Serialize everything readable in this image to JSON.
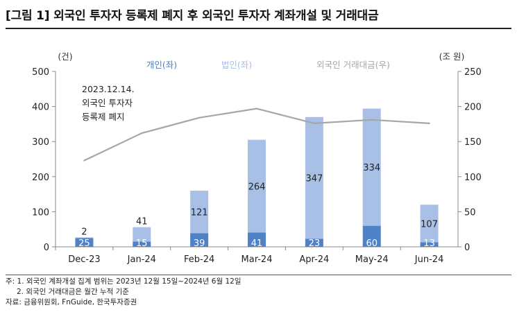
{
  "title": "[그림 1] 외국인 투자자 등록제 폐지 후 외국인 투자자 계좌개설 및 거래대금",
  "notes": [
    "주: 1. 외국인 계좌개설 집계 범위는 2023년 12월 15일~2024년 6월 12일",
    "2. 외국인 거래대금은 월간 누적 기준",
    "자료: 금융위원회, FnGuide, 한국투자증권"
  ],
  "colors": {
    "individual": "#4f81c7",
    "corporate": "#a8bfe6",
    "trading": "#a6a6a6",
    "axis": "#888888"
  },
  "chart_data": {
    "type": "bar",
    "categories": [
      "Dec-23",
      "Jan-24",
      "Feb-24",
      "Mar-24",
      "Apr-24",
      "May-24",
      "Jun-24"
    ],
    "series": [
      {
        "name": "개인(좌)",
        "type": "bar",
        "stack": "accounts",
        "axis": "left",
        "values": [
          25,
          15,
          39,
          41,
          23,
          60,
          13
        ]
      },
      {
        "name": "법인(좌)",
        "type": "bar",
        "stack": "accounts",
        "axis": "left",
        "values": [
          2,
          41,
          121,
          264,
          347,
          334,
          107
        ]
      },
      {
        "name": "외국인 거래대금(우)",
        "type": "line",
        "axis": "right",
        "values": [
          123,
          162,
          184,
          197,
          176,
          181,
          176
        ]
      }
    ],
    "y_left": {
      "label": "(건)",
      "lim": [
        0,
        500
      ],
      "ticks": [
        "0",
        "100",
        "200",
        "300",
        "400",
        "500"
      ]
    },
    "y_right": {
      "label": "(조 원)",
      "lim": [
        0,
        250
      ],
      "ticks": [
        "0",
        "50",
        "100",
        "150",
        "200",
        "250"
      ]
    },
    "annotation": [
      "2023.12.14.",
      "외국인 투자자",
      "등록제 폐지"
    ],
    "legend_position": "top",
    "grid": false
  }
}
